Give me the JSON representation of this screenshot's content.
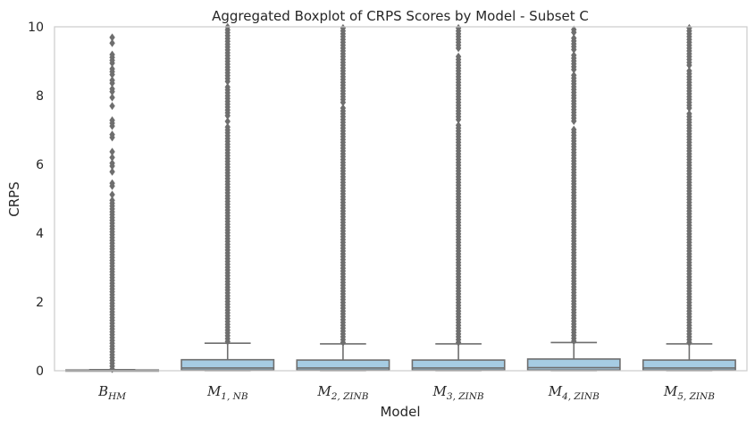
{
  "chart_data": {
    "type": "boxplot",
    "title": "Aggregated Boxplot of CRPS Scores by Model - Subset C",
    "xlabel": "Model",
    "ylabel": "CRPS",
    "ylim": [
      0,
      10
    ],
    "yticks": [
      0,
      2,
      4,
      6,
      8,
      10
    ],
    "grid": false,
    "colors": {
      "box_fill": "#a6cce3",
      "box_edge": "#6e6e6e",
      "flier": "#6e6e6e",
      "frame": "#cccccc"
    },
    "categories": [
      {
        "main": "B",
        "sub": "HM"
      },
      {
        "main": "M",
        "sub": "1, NB"
      },
      {
        "main": "M",
        "sub": "2, ZINB"
      },
      {
        "main": "M",
        "sub": "3, ZINB"
      },
      {
        "main": "M",
        "sub": "4, ZINB"
      },
      {
        "main": "M",
        "sub": "5, ZINB"
      }
    ],
    "boxes": [
      {
        "q1": 0.0,
        "median": 0.0,
        "q3": 0.02,
        "whisker_low": 0.0,
        "whisker_high": 0.03,
        "fliers_from": 0.05,
        "fliers_to": 9.85
      },
      {
        "q1": 0.02,
        "median": 0.08,
        "q3": 0.32,
        "whisker_low": 0.0,
        "whisker_high": 0.8,
        "fliers_from": 0.85,
        "fliers_to": 10.0
      },
      {
        "q1": 0.02,
        "median": 0.08,
        "q3": 0.31,
        "whisker_low": 0.0,
        "whisker_high": 0.78,
        "fliers_from": 0.82,
        "fliers_to": 10.0
      },
      {
        "q1": 0.02,
        "median": 0.08,
        "q3": 0.31,
        "whisker_low": 0.0,
        "whisker_high": 0.78,
        "fliers_from": 0.82,
        "fliers_to": 10.0
      },
      {
        "q1": 0.02,
        "median": 0.09,
        "q3": 0.34,
        "whisker_low": 0.0,
        "whisker_high": 0.82,
        "fliers_from": 0.86,
        "fliers_to": 10.0
      },
      {
        "q1": 0.02,
        "median": 0.08,
        "q3": 0.31,
        "whisker_low": 0.0,
        "whisker_high": 0.78,
        "fliers_from": 0.82,
        "fliers_to": 10.0
      }
    ]
  }
}
